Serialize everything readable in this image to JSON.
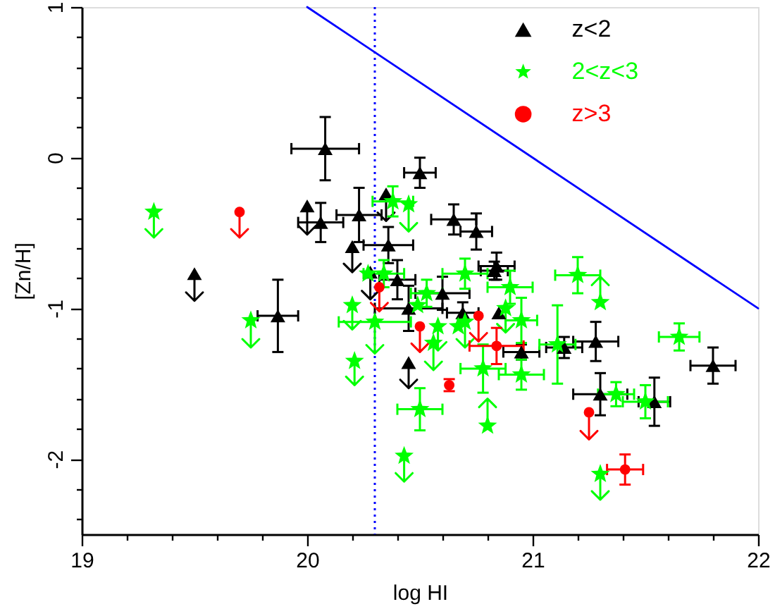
{
  "chart_data": {
    "type": "scatter",
    "xlabel": "log HI",
    "ylabel": "[Zn/H]",
    "xlim": [
      19,
      22
    ],
    "ylim": [
      -2.5,
      1
    ],
    "xticks": [
      19,
      {
        "value": 19.2,
        "label": null
      },
      {
        "value": 19.4,
        "label": null
      },
      {
        "value": 19.6,
        "label": null
      },
      {
        "value": 19.8,
        "label": null
      },
      20,
      {
        "value": 20.2,
        "label": null
      },
      {
        "value": 20.4,
        "label": null
      },
      {
        "value": 20.6,
        "label": null
      },
      {
        "value": 20.8,
        "label": null
      },
      21,
      {
        "value": 21.2,
        "label": null
      },
      {
        "value": 21.4,
        "label": null
      },
      {
        "value": 21.6,
        "label": null
      },
      {
        "value": 21.8,
        "label": null
      },
      22
    ],
    "yticks": [
      {
        "value": -2.4,
        "label": null
      },
      {
        "value": -2.2,
        "label": null
      },
      -2,
      {
        "value": -1.8,
        "label": null
      },
      {
        "value": -1.6,
        "label": null
      },
      {
        "value": -1.4,
        "label": null
      },
      {
        "value": -1.2,
        "label": null
      },
      -1,
      {
        "value": -0.8,
        "label": null
      },
      {
        "value": -0.6,
        "label": null
      },
      {
        "value": -0.4,
        "label": null
      },
      {
        "value": -0.2,
        "label": null
      },
      0,
      {
        "value": 0.2,
        "label": null
      },
      {
        "value": 0.4,
        "label": null
      },
      {
        "value": 0.6,
        "label": null
      },
      {
        "value": 0.8,
        "label": null
      },
      1
    ],
    "legend": "top right",
    "ref_lines": [
      {
        "axis": "x",
        "value": 20.3,
        "color": "#0000ff",
        "line_style": "dotted"
      }
    ],
    "series": [
      {
        "name": "z<2",
        "color": "#000000",
        "marker": "triangle",
        "x": [
          19.5,
          19.87,
          20.0,
          20.06,
          20.08,
          20.2,
          20.23,
          20.28,
          20.35,
          20.36,
          20.4,
          20.45,
          20.45,
          20.5,
          20.6,
          20.65,
          20.69,
          20.75,
          20.83,
          20.84,
          20.85,
          20.95,
          21.14,
          21.28,
          21.3,
          21.54,
          21.8
        ],
        "values": [
          -0.77,
          -1.05,
          -0.32,
          -0.43,
          0.06,
          -0.59,
          -0.38,
          -0.76,
          -0.24,
          -0.58,
          -0.81,
          -1.0,
          -1.36,
          -0.1,
          -0.9,
          -0.41,
          -1.03,
          -0.49,
          -0.75,
          -0.72,
          -1.03,
          -1.29,
          -1.26,
          -1.22,
          -1.57,
          -1.62,
          -1.38
        ],
        "errors": [
          [
            -0.95,
            -0.77
          ],
          0.24,
          [
            -0.51,
            -0.32
          ],
          0.13,
          0.21,
          [
            -0.76,
            -0.59
          ],
          0.18,
          [
            -0.94,
            -0.76
          ],
          [
            -0.42,
            -0.24
          ],
          0.12,
          0.13,
          0.15,
          [
            -1.53,
            -1.36
          ],
          0.1,
          0.11,
          0.1,
          0.07,
          0.12,
          0.06,
          0.09,
          null,
          0.05,
          0.07,
          0.13,
          0.14,
          0.16,
          0.12
        ],
        "xerrors": [
          null,
          0.09,
          null,
          0.1,
          0.15,
          null,
          0.1,
          null,
          null,
          0.11,
          0.08,
          0.15,
          null,
          0.07,
          0.12,
          0.1,
          0.07,
          0.07,
          0.06,
          0.08,
          null,
          0.08,
          0.08,
          0.1,
          0.12,
          0.07,
          0.1
        ]
      },
      {
        "name": "2<z<3",
        "color": "#00ff00",
        "marker": "star",
        "x": [
          19.32,
          19.75,
          20.2,
          20.21,
          20.27,
          20.3,
          20.34,
          20.38,
          20.43,
          20.45,
          20.49,
          20.5,
          20.53,
          20.56,
          20.58,
          20.67,
          20.7,
          20.7,
          20.78,
          20.8,
          20.88,
          20.9,
          20.95,
          20.95,
          21.11,
          21.2,
          21.3,
          21.3,
          21.37,
          21.5,
          21.65
        ],
        "values": [
          -0.36,
          -1.08,
          -0.98,
          -1.35,
          -0.77,
          -1.09,
          -0.77,
          -0.29,
          -1.98,
          -0.31,
          -0.98,
          -1.67,
          -0.9,
          -1.23,
          -1.12,
          -1.12,
          -1.09,
          -0.77,
          -1.4,
          -1.78,
          -1.0,
          -0.86,
          -1.08,
          -1.44,
          -1.24,
          -0.78,
          -0.96,
          -2.1,
          -1.57,
          -1.62,
          -1.19
        ],
        "errors": [
          [
            -0.53,
            -0.36
          ],
          [
            -1.26,
            -1.08
          ],
          [
            -1.14,
            -0.98
          ],
          [
            -1.51,
            -1.35
          ],
          null,
          [
            -1.3,
            -1.09
          ],
          0.09,
          0.1,
          [
            -2.15,
            -1.98
          ],
          [
            -0.49,
            -0.31
          ],
          null,
          0.14,
          0.09,
          [
            -1.41,
            -1.23
          ],
          [
            -1.28,
            -1.12
          ],
          null,
          [
            -1.26,
            -1.09
          ],
          0.1,
          0.16,
          [
            -1.78,
            -1.6
          ],
          [
            -1.16,
            -1.0
          ],
          0.11,
          0.15,
          0.1,
          0.26,
          0.12,
          [
            -0.96,
            -0.79
          ],
          [
            -2.27,
            -2.1
          ],
          0.08,
          0.11,
          0.09
        ],
        "xerrors": [
          null,
          null,
          null,
          null,
          null,
          0.16,
          0.09,
          0.09,
          null,
          null,
          null,
          0.1,
          0.07,
          null,
          null,
          null,
          null,
          0.1,
          0.1,
          null,
          null,
          0.1,
          0.07,
          0.1,
          0.08,
          0.1,
          null,
          null,
          0.08,
          0.1,
          0.09
        ]
      },
      {
        "name": "z>3",
        "color": "#ff0000",
        "marker": "circle",
        "x": [
          19.7,
          20.32,
          20.5,
          20.63,
          20.76,
          20.84,
          21.25,
          21.41
        ],
        "values": [
          -0.36,
          -0.86,
          -1.12,
          -1.51,
          -1.05,
          -1.25,
          -1.69,
          -2.07
        ],
        "errors": [
          [
            -0.53,
            -0.36
          ],
          [
            -1.02,
            -0.86
          ],
          [
            -1.29,
            -1.12
          ],
          0.04,
          [
            -1.22,
            -1.05
          ],
          0.12,
          [
            -1.87,
            -1.69
          ],
          0.1
        ],
        "xerrors": [
          null,
          null,
          null,
          null,
          null,
          0.12,
          null,
          0.08
        ]
      },
      {
        "type": "line",
        "color": "#0000ff",
        "x": [
          20,
          22
        ],
        "values": [
          1,
          -1
        ]
      }
    ]
  }
}
